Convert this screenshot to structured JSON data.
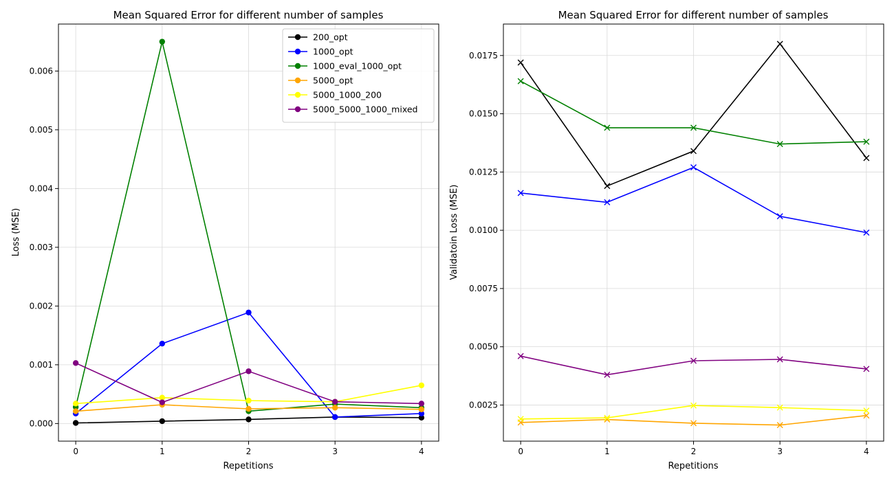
{
  "chart_data": [
    {
      "type": "line",
      "title": "Mean Squared Error for different number of samples",
      "xlabel": "Repetitions",
      "ylabel": "Loss (MSE)",
      "x": [
        0,
        1,
        2,
        3,
        4
      ],
      "xlim": [
        -0.2,
        4.2
      ],
      "ylim": [
        -0.0003,
        0.0068
      ],
      "yticks": [
        0.0,
        0.001,
        0.002,
        0.003,
        0.004,
        0.005,
        0.006
      ],
      "ytick_labels": [
        "0.000",
        "0.001",
        "0.002",
        "0.003",
        "0.004",
        "0.005",
        "0.006"
      ],
      "grid": true,
      "marker": "circle",
      "legend": "upper right",
      "series": [
        {
          "name": "200_opt",
          "color": "#000000",
          "values": [
            1e-05,
            4e-05,
            7e-05,
            0.00011,
            0.0001
          ]
        },
        {
          "name": "1000_opt",
          "color": "#0000ff",
          "values": [
            0.00017,
            0.00136,
            0.00189,
            0.00011,
            0.00017
          ]
        },
        {
          "name": "1000_eval_1000_opt",
          "color": "#008000",
          "values": [
            0.00028,
            0.0065,
            0.00021,
            0.00033,
            0.00027
          ]
        },
        {
          "name": "5000_opt",
          "color": "#ffa500",
          "values": [
            0.00021,
            0.00032,
            0.00025,
            0.00027,
            0.00024
          ]
        },
        {
          "name": "5000_1000_200",
          "color": "#ffff00",
          "values": [
            0.00034,
            0.00044,
            0.00039,
            0.00037,
            0.00065
          ]
        },
        {
          "name": "5000_5000_1000_mixed",
          "color": "#800080",
          "values": [
            0.00103,
            0.00036,
            0.00089,
            0.00037,
            0.00034
          ]
        }
      ]
    },
    {
      "type": "line",
      "title": "Mean Squared Error for different number of samples",
      "xlabel": "Repetitions",
      "ylabel": "Validatoin Loss (MSE)",
      "x": [
        0,
        1,
        2,
        3,
        4
      ],
      "xlim": [
        -0.2,
        4.2
      ],
      "ylim": [
        0.00095,
        0.01885
      ],
      "yticks": [
        0.0025,
        0.005,
        0.0075,
        0.01,
        0.0125,
        0.015,
        0.0175
      ],
      "ytick_labels": [
        "0.0025",
        "0.0050",
        "0.0075",
        "0.0100",
        "0.0125",
        "0.0150",
        "0.0175"
      ],
      "grid": true,
      "marker": "x",
      "series": [
        {
          "color": "#000000",
          "values": [
            0.0172,
            0.0119,
            0.0134,
            0.018,
            0.0131
          ]
        },
        {
          "color": "#0000ff",
          "values": [
            0.0116,
            0.0112,
            0.0127,
            0.0106,
            0.0099
          ]
        },
        {
          "color": "#008000",
          "values": [
            0.0164,
            0.0144,
            0.0144,
            0.0137,
            0.0138
          ]
        },
        {
          "color": "#ffa500",
          "values": [
            0.00175,
            0.00188,
            0.00172,
            0.00164,
            0.00205
          ]
        },
        {
          "color": "#ffff00",
          "values": [
            0.0019,
            0.00195,
            0.00248,
            0.00239,
            0.00226
          ]
        },
        {
          "color": "#800080",
          "values": [
            0.0046,
            0.0038,
            0.0044,
            0.00446,
            0.00405
          ]
        }
      ]
    }
  ]
}
